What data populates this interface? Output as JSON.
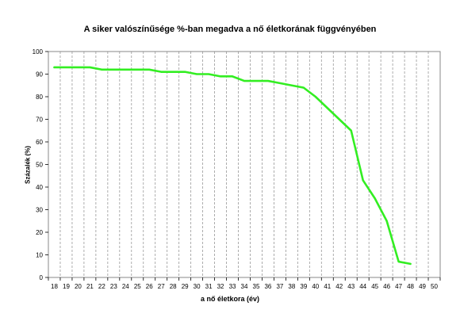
{
  "chart_data": {
    "type": "line",
    "title": "A siker valószínűsége %-ban megadva a nő életkorának függvényében",
    "xlabel": "a nő életkora (év)",
    "ylabel": "Százalék (%)",
    "categories": [
      "18",
      "19",
      "20",
      "21",
      "22",
      "23",
      "24",
      "25",
      "26",
      "27",
      "28",
      "29",
      "30",
      "31",
      "32",
      "33",
      "34",
      "35",
      "36",
      "37",
      "38",
      "39",
      "40",
      "41",
      "42",
      "43",
      "44",
      "45",
      "46",
      "47",
      "48",
      "49",
      "50"
    ],
    "ylim": [
      0,
      100
    ],
    "yticks": [
      0,
      10,
      20,
      30,
      40,
      50,
      60,
      70,
      80,
      90,
      100
    ],
    "grid": "vertical dashed",
    "series": [
      {
        "color": "#33ee22",
        "x": [
          18,
          19,
          20,
          21,
          22,
          23,
          24,
          25,
          26,
          27,
          28,
          29,
          30,
          31,
          32,
          33,
          34,
          35,
          36,
          37,
          38,
          39,
          40,
          41,
          42,
          43,
          44,
          45,
          46,
          47,
          48
        ],
        "values": [
          93,
          93,
          93,
          93,
          92,
          92,
          92,
          92,
          92,
          91,
          91,
          91,
          90,
          90,
          89,
          89,
          87,
          87,
          87,
          86,
          85,
          84,
          80,
          75,
          70,
          65,
          43,
          35,
          25,
          7,
          6
        ]
      }
    ]
  }
}
